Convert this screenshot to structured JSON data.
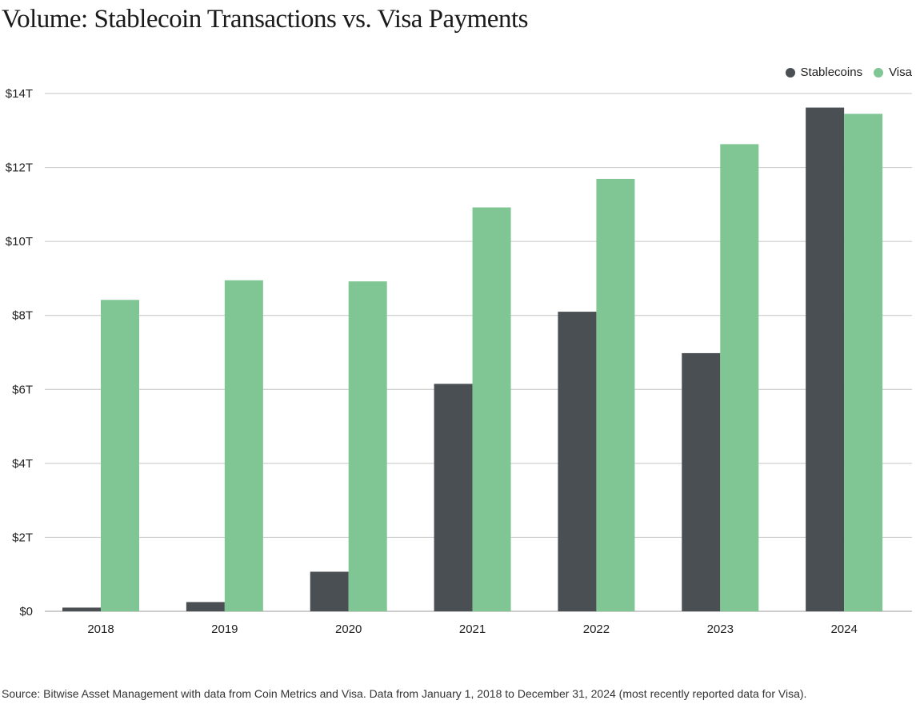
{
  "chart_data": {
    "type": "bar",
    "title": "Volume: Stablecoin Transactions vs. Visa Payments",
    "xlabel": "",
    "ylabel": "",
    "categories": [
      "2018",
      "2019",
      "2020",
      "2021",
      "2022",
      "2023",
      "2024"
    ],
    "series": [
      {
        "name": "Stablecoins",
        "color": "#4a4f54",
        "values": [
          0.1,
          0.25,
          1.07,
          6.15,
          8.1,
          6.98,
          13.62
        ]
      },
      {
        "name": "Visa",
        "color": "#80c594",
        "values": [
          8.42,
          8.95,
          8.92,
          10.92,
          11.69,
          12.63,
          13.45
        ]
      }
    ],
    "ylim": [
      0,
      14
    ],
    "yticks": [
      0,
      2,
      4,
      6,
      8,
      10,
      12,
      14
    ],
    "ytick_labels": [
      "$0",
      "$2T",
      "$4T",
      "$6T",
      "$8T",
      "$10T",
      "$12T",
      "$14T"
    ],
    "grid": true,
    "legend_position": "top-right",
    "source": "Source: Bitwise Asset Management with data from Coin Metrics and Visa. Data from January 1, 2018 to December 31, 2024 (most recently reported data for Visa)."
  }
}
